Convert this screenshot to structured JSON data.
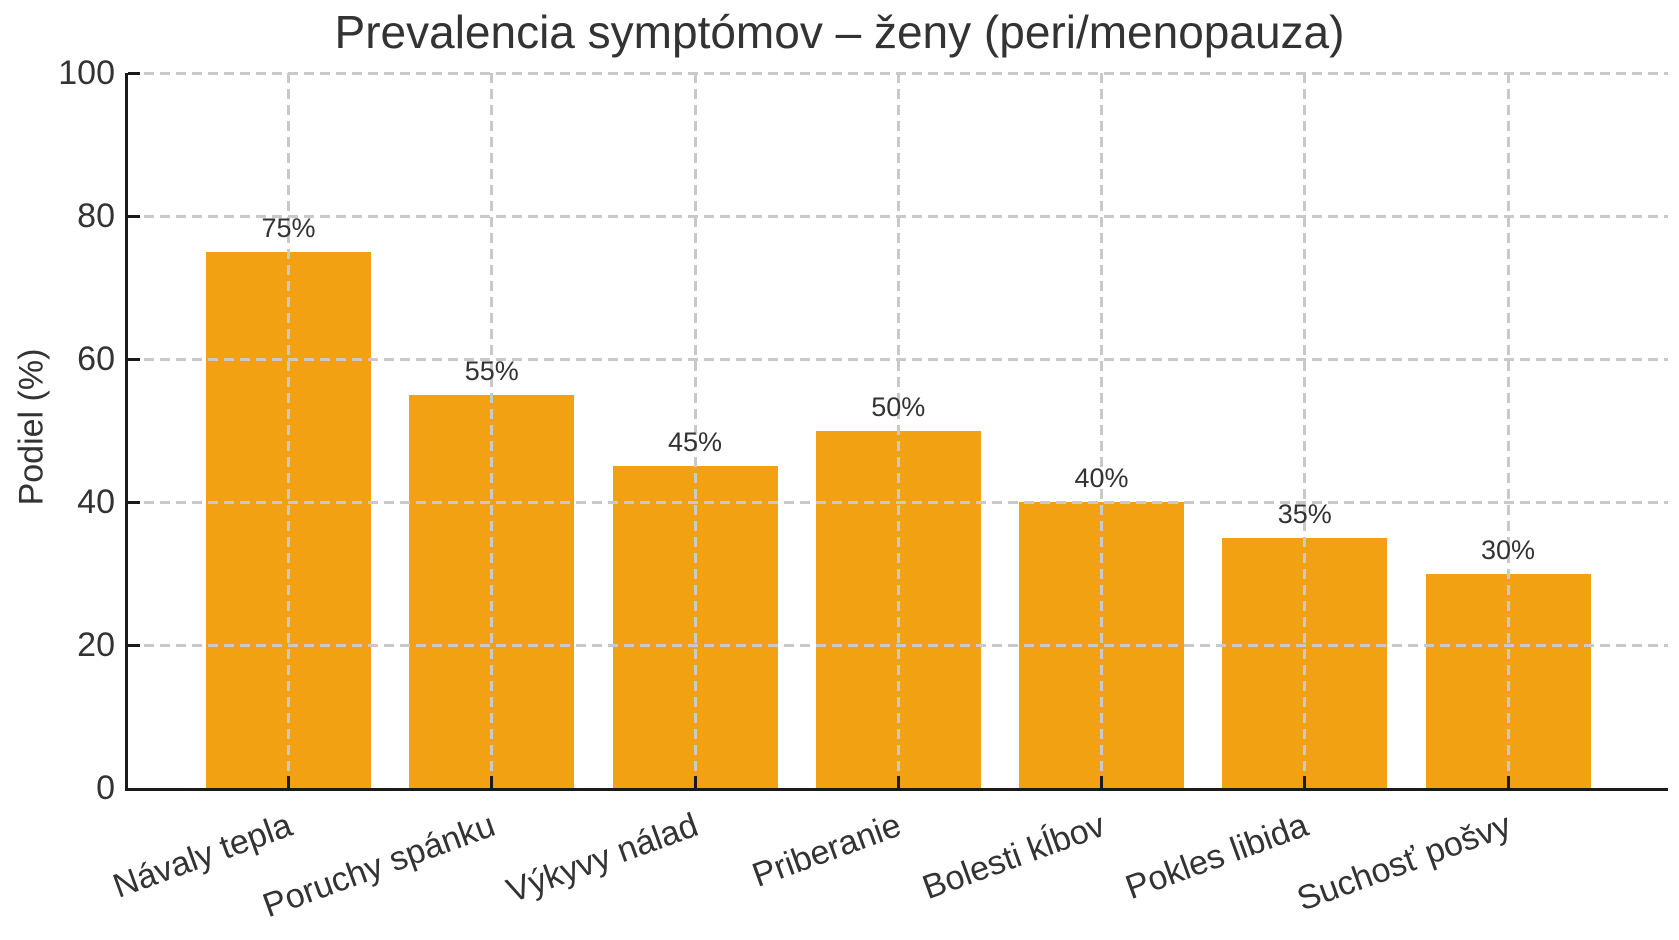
{
  "chart_data": {
    "type": "bar",
    "title": "Prevalencia symptómov – ženy (peri/menopauza)",
    "ylabel": "Podiel (%)",
    "xlabel": "",
    "categories": [
      "Návaly tepla",
      "Poruchy spánku",
      "Výkyvy nálad",
      "Priberanie",
      "Bolesti kĺbov",
      "Pokles libida",
      "Suchosť pošvy"
    ],
    "values": [
      75,
      55,
      45,
      50,
      40,
      35,
      30
    ],
    "value_labels": [
      "75%",
      "55%",
      "45%",
      "50%",
      "40%",
      "35%",
      "30%"
    ],
    "ylim": [
      0,
      100
    ],
    "yticks": [
      0,
      20,
      40,
      60,
      80,
      100
    ],
    "ytick_labels": [
      "0",
      "20",
      "40",
      "60",
      "80",
      "100"
    ],
    "grid": "dashed",
    "grid_on": true,
    "legend_position": "none",
    "bar_color": "#F2A113",
    "grid_color": "#C9C9C9",
    "axis_color": "#1A1A1A",
    "text_color": "#333333",
    "x_label_rotation_deg": 20
  }
}
